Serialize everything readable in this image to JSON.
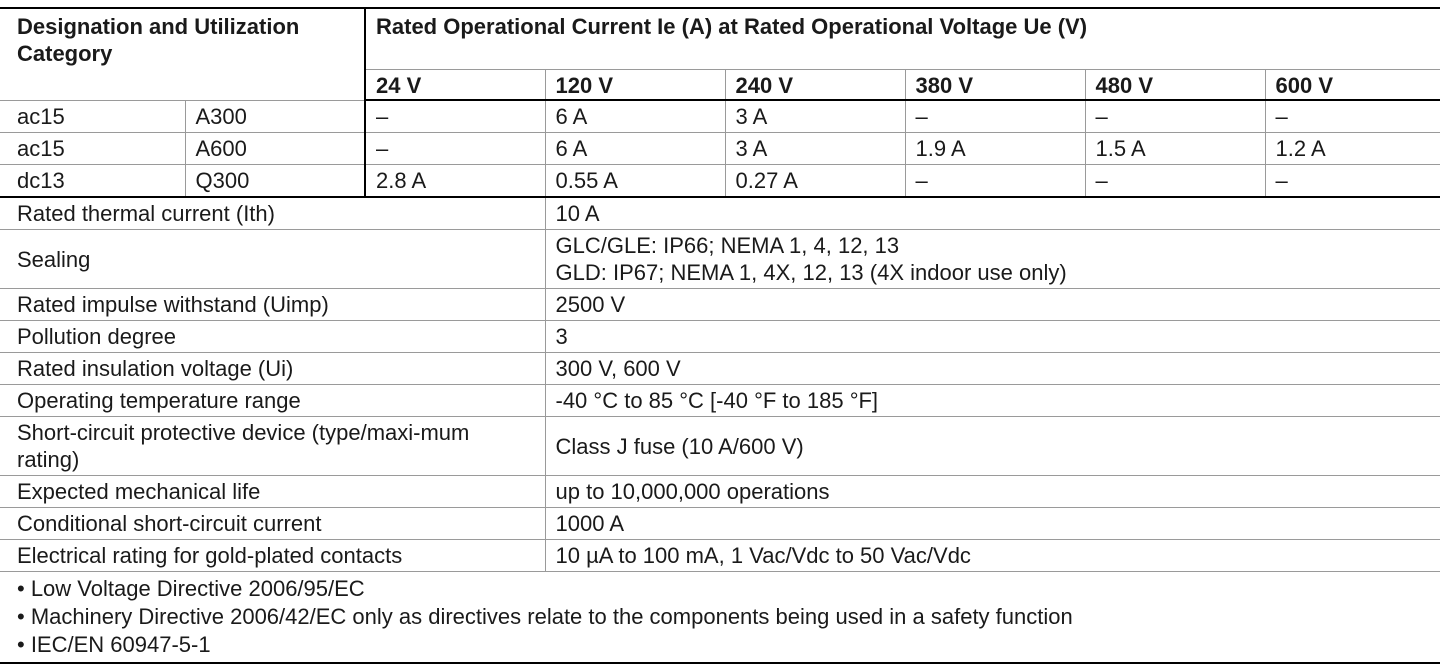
{
  "table": {
    "header": {
      "designation": "Designation and Utilization Category",
      "rated": "Rated Operational Current Ie (A) at Rated Operational Voltage Ue (V)",
      "voltages": [
        "24 V",
        "120 V",
        "240 V",
        "380 V",
        "480 V",
        "600 V"
      ]
    },
    "ratings": [
      [
        "ac15",
        "A300",
        "–",
        "6 A",
        "3 A",
        "–",
        "–",
        "–"
      ],
      [
        "ac15",
        "A600",
        "–",
        "6 A",
        "3 A",
        "1.9 A",
        "1.5 A",
        "1.2 A"
      ],
      [
        "dc13",
        "Q300",
        "2.8 A",
        "0.55 A",
        "0.27 A",
        "–",
        "–",
        "–"
      ]
    ],
    "specs": [
      {
        "label": "Rated thermal current (Ith)",
        "values": [
          "10 A"
        ]
      },
      {
        "label": "Sealing",
        "values": [
          "GLC/GLE: IP66; NEMA 1, 4, 12, 13",
          "GLD: IP67; NEMA 1, 4X, 12, 13 (4X indoor use only)"
        ]
      },
      {
        "label": "Rated impulse withstand (Uimp)",
        "values": [
          "2500 V"
        ]
      },
      {
        "label": "Pollution degree",
        "values": [
          "3"
        ]
      },
      {
        "label": "Rated insulation voltage (Ui)",
        "values": [
          "300 V, 600 V"
        ]
      },
      {
        "label": "Operating temperature range",
        "values": [
          "-40 °C to 85 °C [-40 °F to 185 °F]"
        ]
      },
      {
        "label": "Short-circuit protective device (type/maxi-mum rating)",
        "values": [
          "Class J fuse (10 A/600 V)"
        ]
      },
      {
        "label": "Expected mechanical life",
        "values": [
          "up to 10,000,000 operations"
        ]
      },
      {
        "label": "Conditional short-circuit current",
        "values": [
          "1000 A"
        ]
      },
      {
        "label": "Electrical rating for gold-plated contacts",
        "values": [
          "10 µA to 100 mA, 1 Vac/Vdc to 50 Vac/Vdc"
        ]
      }
    ],
    "notes": [
      "• Low Voltage Directive 2006/95/EC",
      "• Machinery Directive 2006/42/EC only as directives relate to the components being used in a safety function",
      "• IEC/EN 60947-5-1"
    ]
  }
}
